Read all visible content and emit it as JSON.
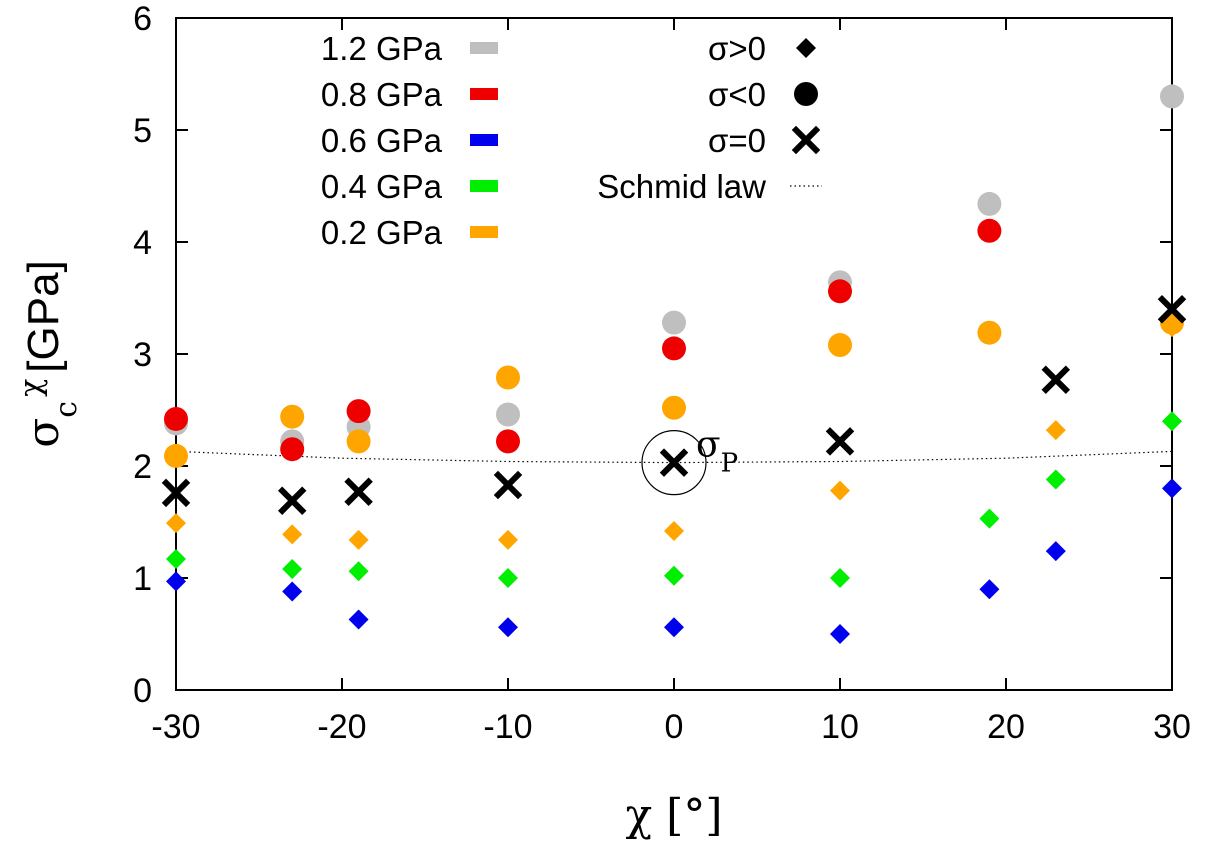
{
  "chart_data": {
    "type": "scatter",
    "title": "",
    "xlabel": "χ [°]",
    "ylabel": "σ_c^χ [GPa]",
    "xlim": [
      -30,
      30
    ],
    "ylim": [
      0,
      6
    ],
    "xticks": [
      -30,
      -20,
      -10,
      0,
      10,
      20,
      30
    ],
    "yticks": [
      0,
      1,
      2,
      3,
      4,
      5,
      6
    ],
    "grid": false,
    "series": [
      {
        "name": "1.2 GPa",
        "color": "#bfbfbf",
        "sign": "negative",
        "marker": "circle",
        "points": [
          [
            -30,
            2.38
          ],
          [
            -23,
            2.22
          ],
          [
            -19,
            2.35
          ],
          [
            -10,
            2.46
          ],
          [
            0,
            3.28
          ],
          [
            10,
            3.64
          ],
          [
            19,
            4.34
          ],
          [
            30,
            5.3
          ]
        ]
      },
      {
        "name": "0.8 GPa",
        "color": "#ee0000",
        "sign": "negative",
        "marker": "circle",
        "points": [
          [
            -30,
            2.42
          ],
          [
            -23,
            2.15
          ],
          [
            -19,
            2.49
          ],
          [
            -10,
            2.22
          ],
          [
            0,
            3.05
          ],
          [
            10,
            3.56
          ],
          [
            19,
            4.1
          ]
        ]
      },
      {
        "name": "0.2 GPa",
        "color": "#ffa500",
        "sign": "negative",
        "marker": "circle",
        "points": [
          [
            -30,
            2.09
          ],
          [
            -23,
            2.44
          ],
          [
            -19,
            2.22
          ],
          [
            -10,
            2.79
          ],
          [
            0,
            2.52
          ],
          [
            10,
            3.08
          ],
          [
            19,
            3.19
          ],
          [
            30,
            3.28
          ]
        ]
      },
      {
        "name": "0.2 GPa",
        "color": "#ffa500",
        "sign": "positive",
        "marker": "diamond",
        "points": [
          [
            -30,
            1.49
          ],
          [
            -23,
            1.39
          ],
          [
            -19,
            1.34
          ],
          [
            -10,
            1.34
          ],
          [
            0,
            1.42
          ],
          [
            10,
            1.78
          ],
          [
            23,
            2.32
          ],
          [
            30,
            3.24
          ]
        ]
      },
      {
        "name": "0.4 GPa",
        "color": "#00ee00",
        "sign": "positive",
        "marker": "diamond",
        "points": [
          [
            -30,
            1.17
          ],
          [
            -23,
            1.08
          ],
          [
            -19,
            1.06
          ],
          [
            -10,
            1.0
          ],
          [
            0,
            1.02
          ],
          [
            10,
            1.0
          ],
          [
            19,
            1.53
          ],
          [
            23,
            1.88
          ],
          [
            30,
            2.4
          ]
        ]
      },
      {
        "name": "0.6 GPa",
        "color": "#0000ee",
        "sign": "positive",
        "marker": "diamond",
        "points": [
          [
            -30,
            0.97
          ],
          [
            -23,
            0.88
          ],
          [
            -19,
            0.63
          ],
          [
            -10,
            0.56
          ],
          [
            0,
            0.56
          ],
          [
            10,
            0.5
          ],
          [
            19,
            0.9
          ],
          [
            23,
            1.24
          ],
          [
            30,
            1.8
          ]
        ]
      },
      {
        "name": "σ=0",
        "color": "#000000",
        "sign": "zero",
        "marker": "cross",
        "points": [
          [
            -30,
            1.76
          ],
          [
            -23,
            1.69
          ],
          [
            -19,
            1.77
          ],
          [
            -10,
            1.83
          ],
          [
            0,
            2.03
          ],
          [
            10,
            2.22
          ],
          [
            23,
            2.77
          ],
          [
            30,
            3.4
          ]
        ]
      },
      {
        "name": "Schmid law",
        "color": "#000000",
        "marker": "dotted-line",
        "points": [
          [
            -30,
            2.13
          ],
          [
            -20,
            2.07
          ],
          [
            -10,
            2.04
          ],
          [
            0,
            2.03
          ],
          [
            10,
            2.04
          ],
          [
            20,
            2.07
          ],
          [
            30,
            2.13
          ]
        ]
      }
    ],
    "legend": {
      "placement": "top",
      "pressure_entries": [
        {
          "label": "1.2 GPa",
          "color": "#bfbfbf"
        },
        {
          "label": "0.8 GPa",
          "color": "#ee0000"
        },
        {
          "label": "0.6 GPa",
          "color": "#0000ee"
        },
        {
          "label": "0.4 GPa",
          "color": "#00ee00"
        },
        {
          "label": "0.2 GPa",
          "color": "#ffa500"
        }
      ],
      "sign_entries": [
        {
          "label": "σ>0",
          "marker": "diamond"
        },
        {
          "label": "σ<0",
          "marker": "circle"
        },
        {
          "label": "σ=0",
          "marker": "cross"
        },
        {
          "label": "Schmid law",
          "marker": "dotted-line"
        }
      ]
    },
    "annotation": {
      "label": "σ",
      "subscript": "P",
      "x": 0,
      "y": 2.03,
      "marker": "open-circle"
    }
  }
}
